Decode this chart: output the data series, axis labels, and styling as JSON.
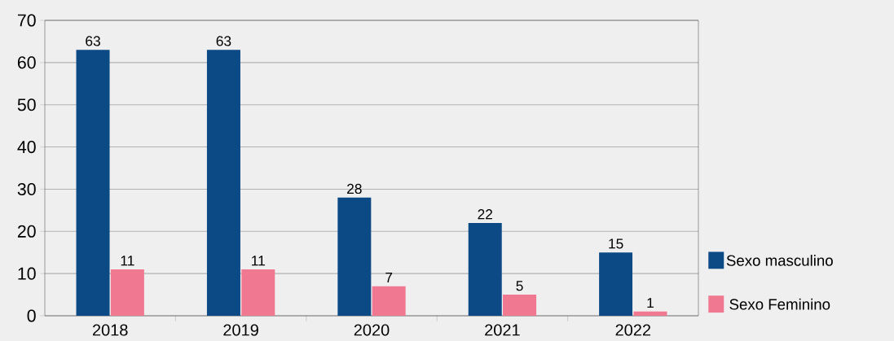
{
  "chart_data": {
    "type": "bar",
    "categories": [
      "2018",
      "2019",
      "2020",
      "2021",
      "2022"
    ],
    "series": [
      {
        "name": "Sexo masculino",
        "color": "#0b4a85",
        "values": [
          63,
          63,
          28,
          22,
          15
        ]
      },
      {
        "name": "Sexo Feminino",
        "color": "#f07890",
        "values": [
          11,
          11,
          7,
          5,
          1
        ]
      }
    ],
    "ylim": [
      0,
      70
    ],
    "yticks": [
      0,
      10,
      20,
      30,
      40,
      50,
      60,
      70
    ],
    "grid": "y",
    "legend": "bottom right",
    "data_labels": true
  }
}
